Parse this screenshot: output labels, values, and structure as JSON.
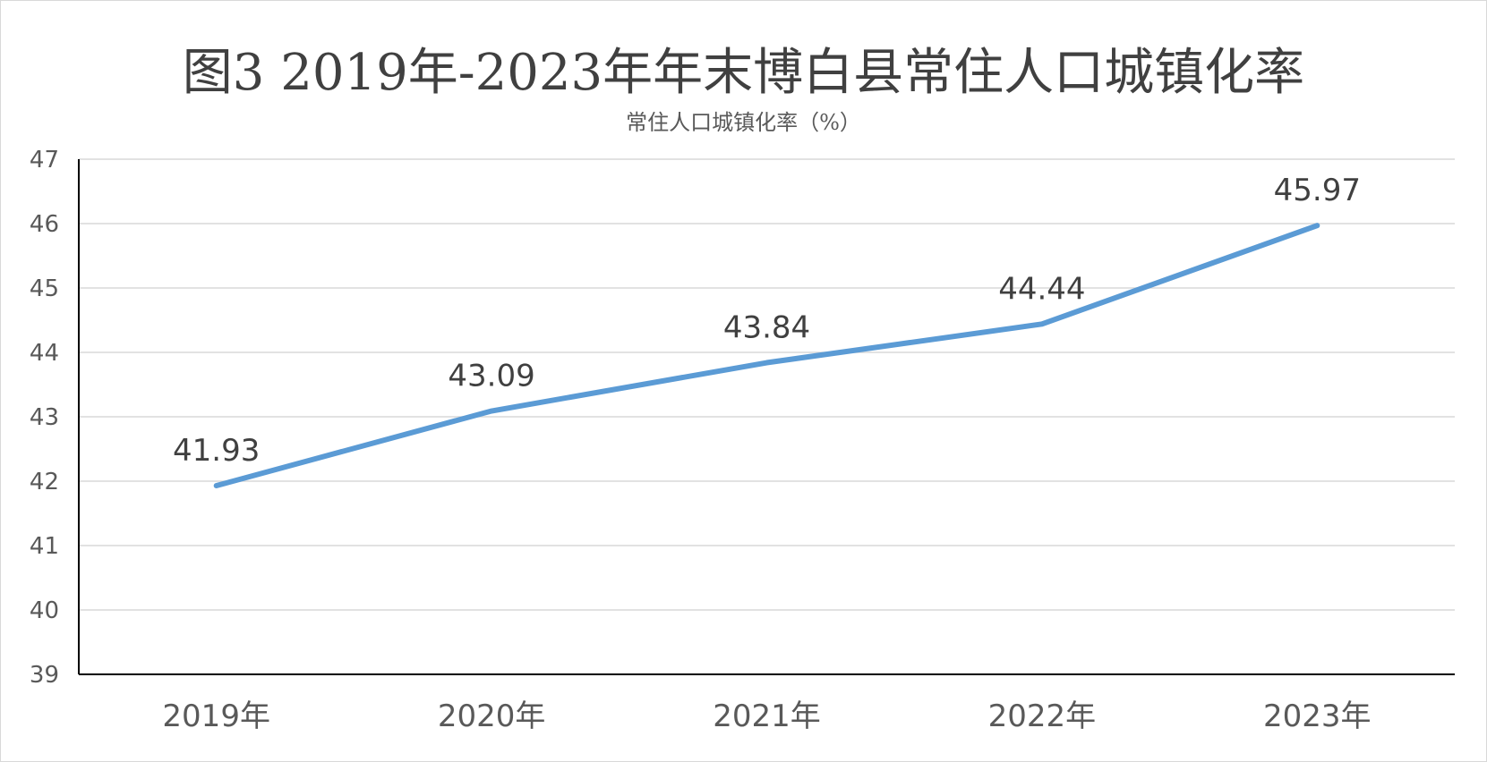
{
  "chart_data": {
    "type": "line",
    "title": "图3 2019年-2023年年末博白县常住人口城镇化率",
    "subtitle": "常住人口城镇化率（%）",
    "categories": [
      "2019年",
      "2020年",
      "2021年",
      "2022年",
      "2023年"
    ],
    "series": [
      {
        "values": [
          41.93,
          43.09,
          43.84,
          44.44,
          45.97
        ],
        "color": "#5b9bd5"
      }
    ],
    "data_labels": [
      "41.93",
      "43.09",
      "43.84",
      "44.44",
      "45.97"
    ],
    "ylim": [
      39,
      47
    ],
    "yticks": [
      "39",
      "40",
      "41",
      "42",
      "43",
      "44",
      "45",
      "46",
      "47"
    ],
    "grid": true,
    "legend": "none",
    "gridline_color": "#d9d9d9",
    "axis_color": "#000000"
  }
}
